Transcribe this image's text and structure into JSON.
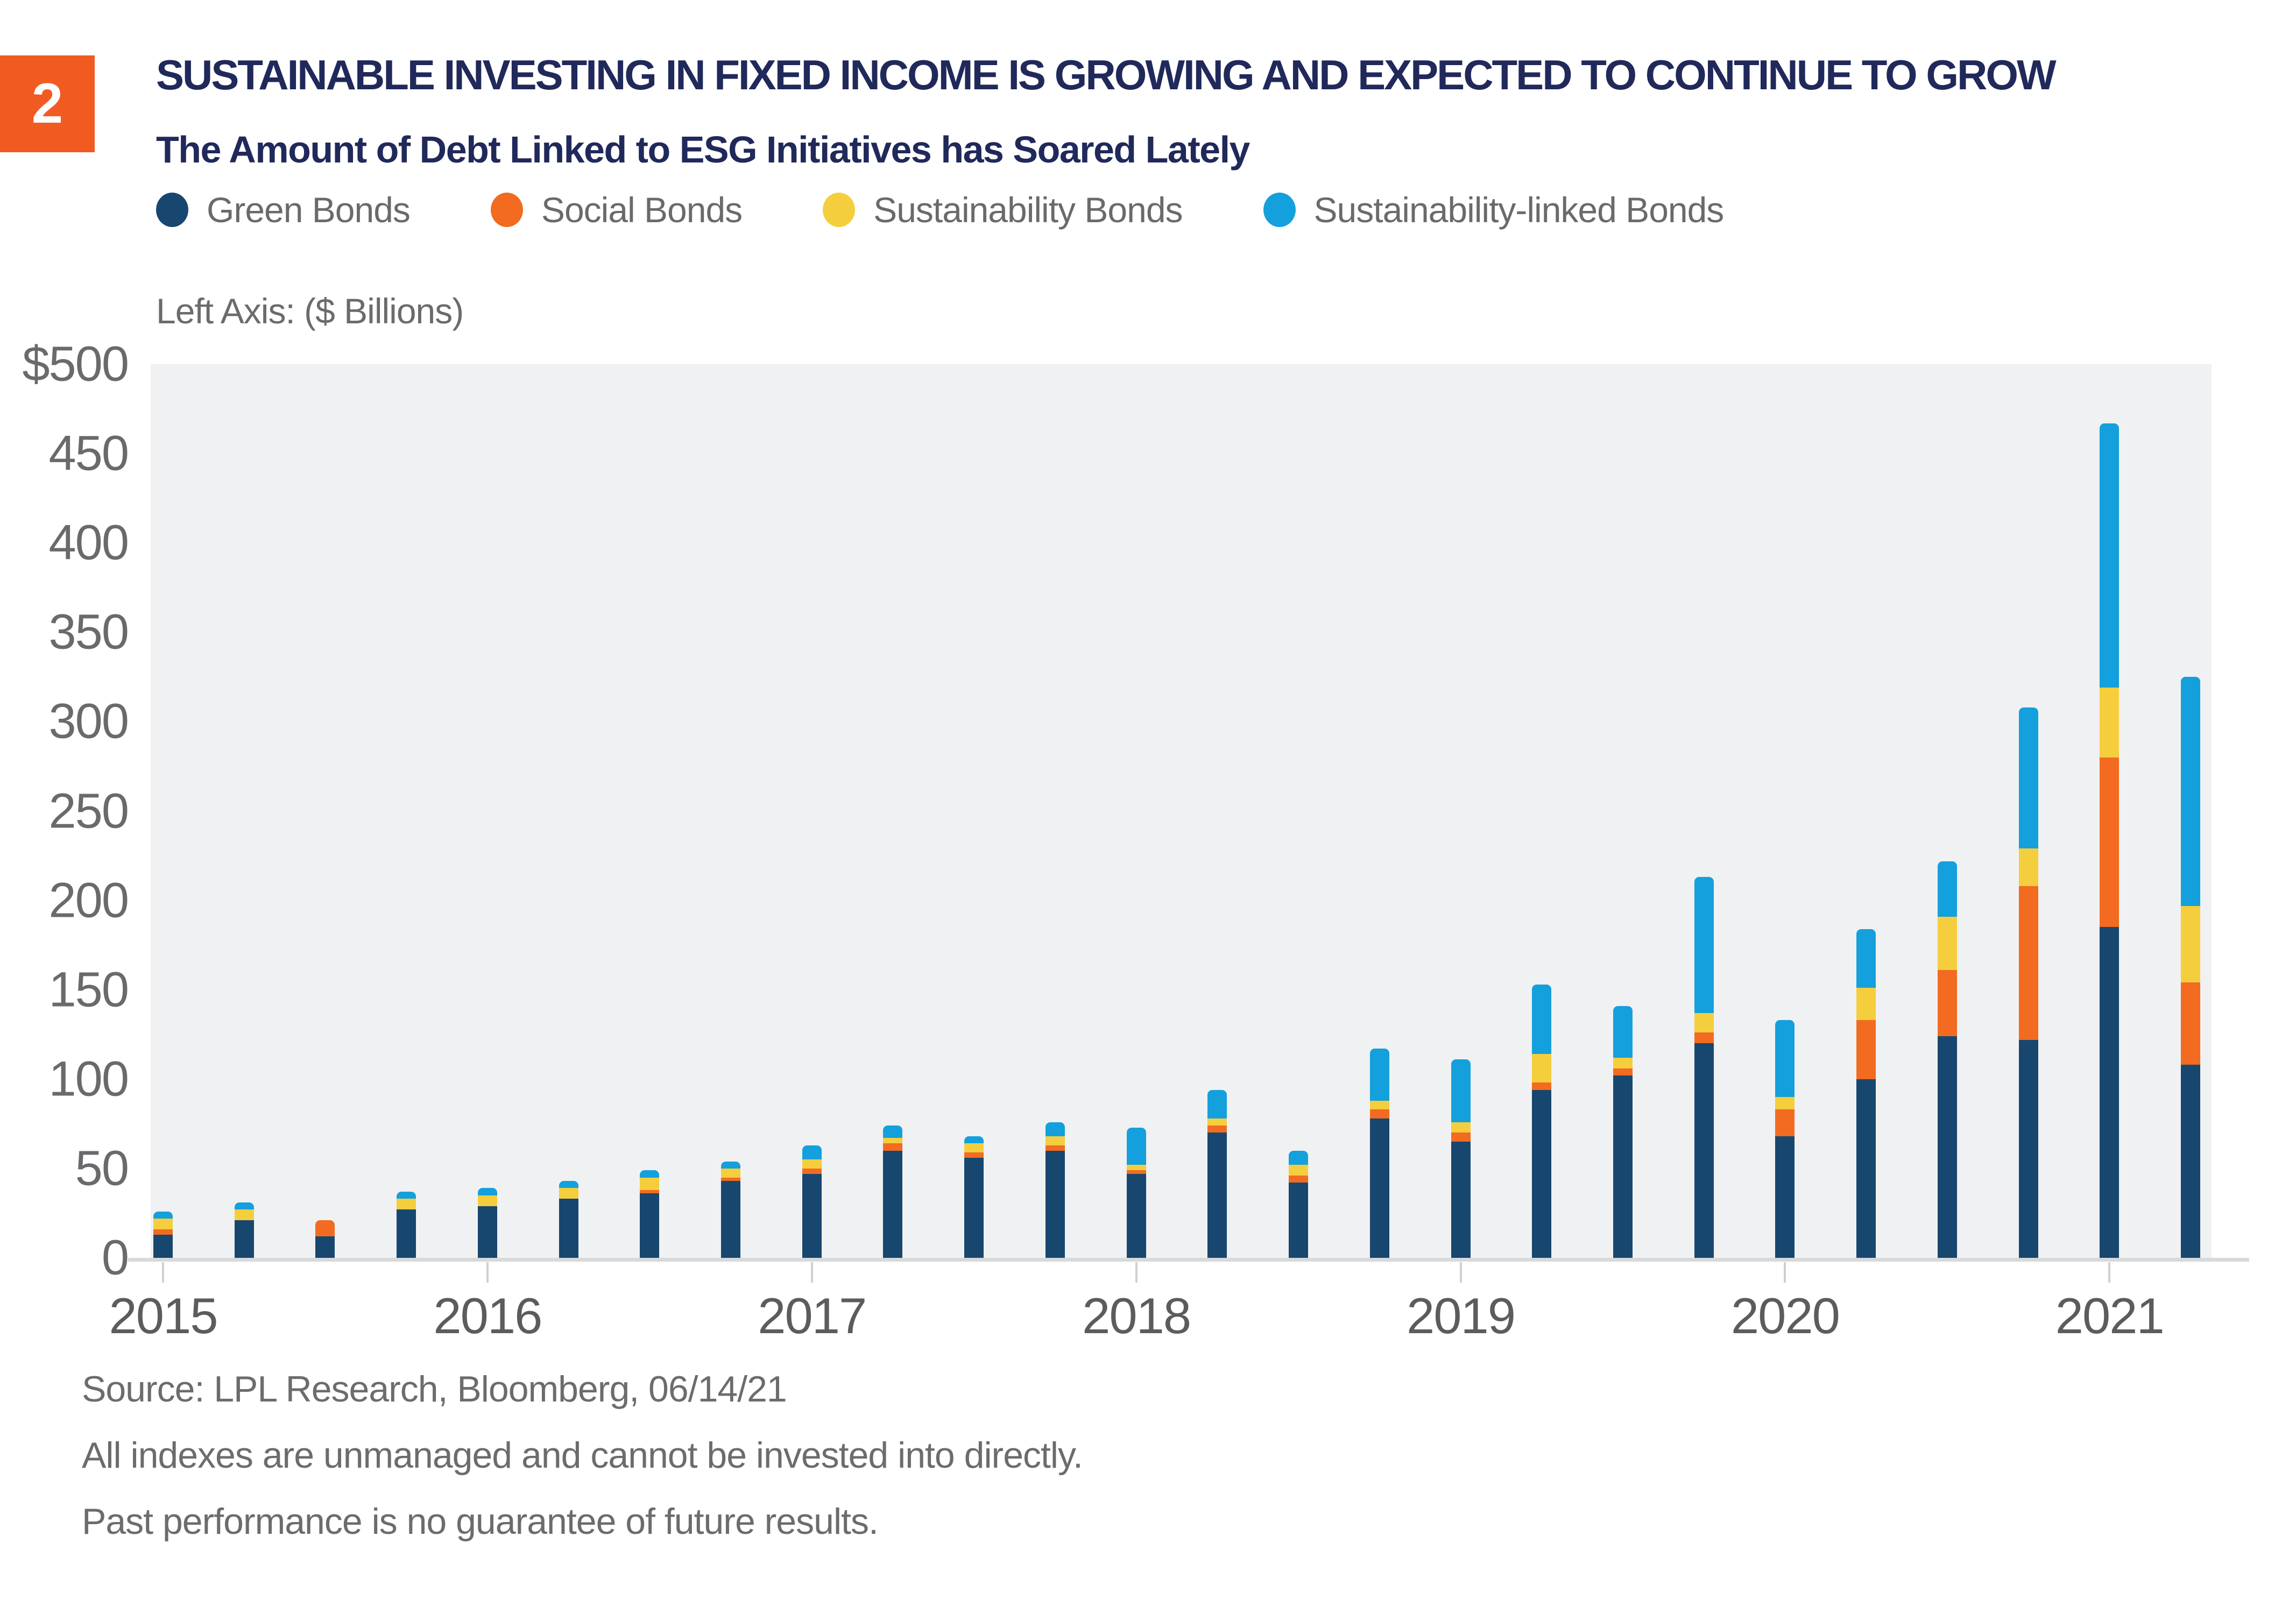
{
  "figure_number": "2",
  "header": {
    "title": "SUSTAINABLE INVESTING IN FIXED INCOME IS GROWING AND EXPECTED TO CONTINUE TO GROW",
    "subtitle": "The Amount of Debt Linked to ESG Initiatives has Soared Lately",
    "axis_note": "Left Axis: ($ Billions)"
  },
  "legend": [
    {
      "label": "Green Bonds",
      "color": "#17476F"
    },
    {
      "label": "Social Bonds",
      "color": "#F26B21"
    },
    {
      "label": "Sustainability Bonds",
      "color": "#F5CE3D"
    },
    {
      "label": "Sustainability-linked Bonds",
      "color": "#14A0DC"
    }
  ],
  "chart_data": {
    "type": "bar",
    "stacked": true,
    "title": "Quarterly ESG-linked debt issuance",
    "xlabel": "",
    "ylabel": "$ Billions",
    "ylim": [
      0,
      500
    ],
    "grid": false,
    "legend_position": "top",
    "plot_background": "#F0F1F2",
    "yticks": [
      "$500",
      "450",
      "400",
      "350",
      "300",
      "250",
      "200",
      "150",
      "100",
      "50",
      "0"
    ],
    "categories": [
      "2015 Q1",
      "2015 Q2",
      "2015 Q3",
      "2015 Q4",
      "2016 Q1",
      "2016 Q2",
      "2016 Q3",
      "2016 Q4",
      "2017 Q1",
      "2017 Q2",
      "2017 Q3",
      "2017 Q4",
      "2018 Q1",
      "2018 Q2",
      "2018 Q3",
      "2018 Q4",
      "2019 Q1",
      "2019 Q2",
      "2019 Q3",
      "2019 Q4",
      "2020 Q1",
      "2020 Q2",
      "2020 Q3",
      "2020 Q4",
      "2021 Q1",
      "2021 Q2"
    ],
    "series": [
      {
        "name": "Green Bonds",
        "color": "#17476F",
        "values": [
          13,
          21,
          12,
          27,
          29,
          33,
          36,
          43,
          47,
          60,
          56,
          60,
          47,
          70,
          42,
          78,
          65,
          94,
          102,
          120,
          68,
          100,
          124,
          122,
          185,
          108
        ]
      },
      {
        "name": "Social Bonds",
        "color": "#F26B21",
        "values": [
          3,
          0,
          9,
          0,
          0,
          0,
          2,
          2,
          3,
          4,
          3,
          3,
          2,
          4,
          4,
          5,
          5,
          4,
          4,
          6,
          15,
          33,
          37,
          86,
          95,
          46
        ]
      },
      {
        "name": "Sustainability Bonds",
        "color": "#F5CE3D",
        "values": [
          6,
          6,
          0,
          6,
          6,
          6,
          7,
          5,
          5,
          3,
          5,
          5,
          3,
          4,
          6,
          5,
          6,
          16,
          6,
          11,
          7,
          18,
          30,
          21,
          39,
          43
        ]
      },
      {
        "name": "Sustainability-linked Bonds",
        "color": "#14A0DC",
        "values": [
          4,
          4,
          0,
          4,
          4,
          4,
          4,
          4,
          8,
          7,
          4,
          8,
          21,
          16,
          8,
          29,
          35,
          39,
          29,
          76,
          43,
          33,
          31,
          79,
          148,
          128
        ]
      }
    ],
    "totals": [
      26,
      31,
      21,
      37,
      39,
      43,
      49,
      54,
      63,
      74,
      68,
      76,
      73,
      94,
      60,
      117,
      111,
      153,
      141,
      213,
      133,
      184,
      222,
      308,
      467,
      325
    ],
    "year_labels": [
      {
        "label": "2015",
        "bar_index": 0
      },
      {
        "label": "2016",
        "bar_index": 4
      },
      {
        "label": "2017",
        "bar_index": 8
      },
      {
        "label": "2018",
        "bar_index": 12
      },
      {
        "label": "2019",
        "bar_index": 16
      },
      {
        "label": "2020",
        "bar_index": 20
      },
      {
        "label": "2021",
        "bar_index": 24
      }
    ]
  },
  "source": {
    "line1": "Source: LPL Research, Bloomberg,  06/14/21",
    "line2": "All indexes are unmanaged and cannot be invested into directly.",
    "line3": "Past performance is no guarantee of future results."
  }
}
